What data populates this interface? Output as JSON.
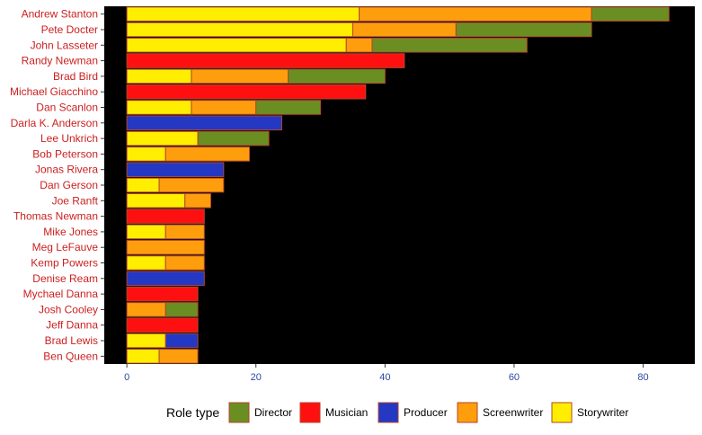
{
  "chart_data": {
    "type": "bar",
    "orientation": "horizontal",
    "stacked": true,
    "title": "",
    "xlabel": "",
    "ylabel": "",
    "xlim": [
      -3.5,
      88
    ],
    "x_ticks": [
      0,
      20,
      40,
      60,
      80
    ],
    "grid": false,
    "legend_position": "bottom",
    "legend_title": "Role type",
    "categories": [
      "Andrew Stanton",
      "Pete Docter",
      "John Lasseter",
      "Randy Newman",
      "Brad Bird",
      "Michael Giacchino",
      "Dan Scanlon",
      "Darla K. Anderson",
      "Lee Unkrich",
      "Bob Peterson",
      "Jonas Rivera",
      "Dan Gerson",
      "Joe Ranft",
      "Thomas Newman",
      "Mike Jones",
      "Meg LeFauve",
      "Kemp Powers",
      "Denise Ream",
      "Mychael Danna",
      "Josh Cooley",
      "Jeff Danna",
      "Brad Lewis",
      "Ben Queen"
    ],
    "series": [
      {
        "name": "Storywriter",
        "color": "#FFEE00",
        "values": [
          36,
          35,
          34,
          0,
          10,
          0,
          10,
          0,
          11,
          6,
          0,
          5,
          9,
          0,
          6,
          0,
          6,
          0,
          0,
          0,
          0,
          6,
          5
        ]
      },
      {
        "name": "Screenwriter",
        "color": "#FF9E0D",
        "values": [
          36,
          16,
          4,
          0,
          15,
          0,
          10,
          0,
          0,
          13,
          0,
          10,
          4,
          0,
          6,
          12,
          6,
          0,
          0,
          6,
          0,
          0,
          6
        ]
      },
      {
        "name": "Producer",
        "color": "#2438C4",
        "values": [
          0,
          0,
          0,
          0,
          0,
          0,
          0,
          24,
          0,
          0,
          15,
          0,
          0,
          0,
          0,
          0,
          0,
          12,
          0,
          0,
          0,
          5,
          0
        ]
      },
      {
        "name": "Musician",
        "color": "#FF1010",
        "values": [
          0,
          0,
          0,
          43,
          0,
          37,
          0,
          0,
          0,
          0,
          0,
          0,
          0,
          12,
          0,
          0,
          0,
          0,
          11,
          0,
          11,
          0,
          0
        ]
      },
      {
        "name": "Director",
        "color": "#6B8E23",
        "values": [
          12,
          21,
          24,
          0,
          15,
          0,
          10,
          0,
          11,
          0,
          0,
          0,
          0,
          0,
          0,
          0,
          0,
          0,
          0,
          5,
          0,
          0,
          0
        ]
      }
    ],
    "legend_order": [
      "Director",
      "Musician",
      "Producer",
      "Screenwriter",
      "Storywriter"
    ]
  }
}
